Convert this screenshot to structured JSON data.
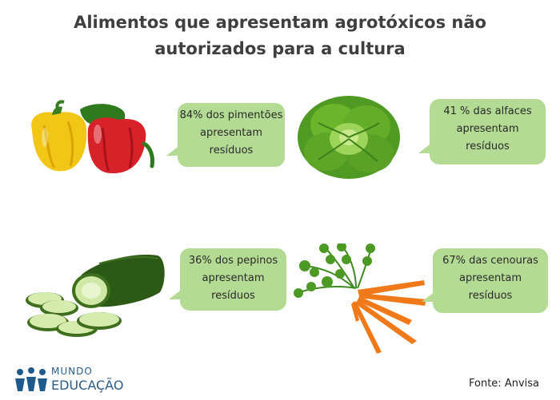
{
  "title": {
    "line1": "Alimentos que apresentam agrotóxicos não",
    "line2": "autorizados para a cultura"
  },
  "cards": [
    {
      "lines": [
        "84% dos pimentões",
        "apresentam",
        "resíduos"
      ],
      "illustration": "bell-peppers-image"
    },
    {
      "lines": [
        "41 % das alfaces",
        "apresentam",
        "resíduos"
      ],
      "illustration": "lettuce-image"
    },
    {
      "lines": [
        "36% dos pepinos",
        "apresentam",
        "resíduos"
      ],
      "illustration": "cucumber-image"
    },
    {
      "lines": [
        "67% das cenouras",
        "apresentam",
        "resíduos"
      ],
      "illustration": "carrots-image"
    }
  ],
  "logo": {
    "line1": "MUNDO",
    "line2": "EDUCAÇÃO"
  },
  "source": "Fonte: Anvisa",
  "colors": {
    "bubble": "#b3db93",
    "title": "#3f3f3f",
    "logo": "#2b5d86"
  }
}
